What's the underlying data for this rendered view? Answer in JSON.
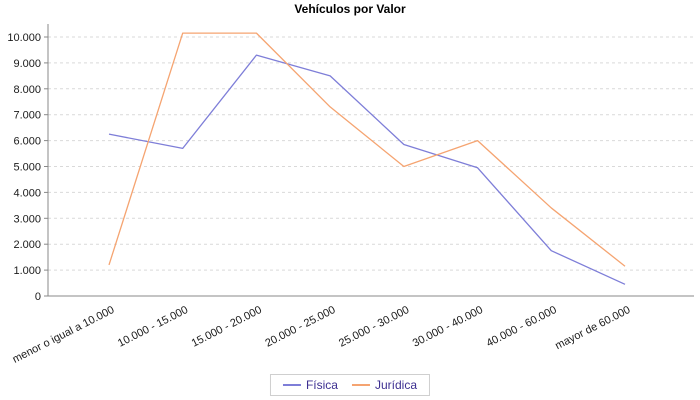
{
  "chart_data": {
    "type": "line",
    "title": "Vehículos por Valor",
    "categories": [
      "menor o igual a 10.000",
      "10.000 - 15.000",
      "15.000 - 20.000",
      "20.000 - 25.000",
      "25.000 - 30.000",
      "30.000 - 40.000",
      "40.000 - 60.000",
      "mayor de 60.000"
    ],
    "series": [
      {
        "name": "Física",
        "color": "#7e7ed8",
        "values": [
          6250,
          5700,
          9300,
          8500,
          5850,
          4950,
          1750,
          450
        ]
      },
      {
        "name": "Jurídica",
        "color": "#f5a471",
        "values": [
          1200,
          10150,
          10150,
          7300,
          5000,
          6000,
          3400,
          1150
        ]
      }
    ],
    "ylim": [
      0,
      10000
    ],
    "ytick_step": 1000,
    "ytick_labels": [
      "0",
      "1.000",
      "2.000",
      "3.000",
      "4.000",
      "5.000",
      "6.000",
      "7.000",
      "8.000",
      "9.000",
      "10.000"
    ],
    "grid": "horizontal-dashed",
    "legend_position": "bottom-center",
    "colors": {
      "grid": "#d9d9d9",
      "axis": "#888888",
      "tick_text": "#1a1a1a",
      "legend_text": "#3d2f91",
      "title": "#000000",
      "background": "#ffffff"
    }
  }
}
